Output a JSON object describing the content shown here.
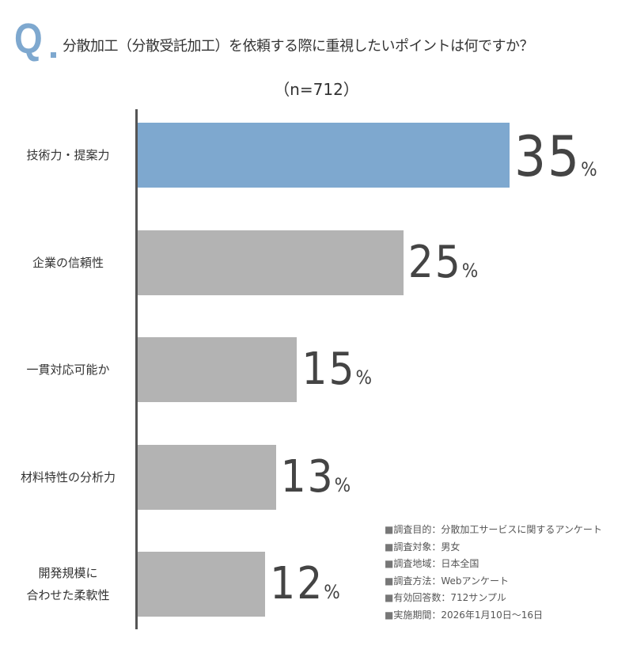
{
  "header": {
    "q_mark": "Q",
    "title": "分散加工（分散受託加工）を依頼する際に重視したいポイントは何ですか？",
    "sample": "（n=712）"
  },
  "chart_data": {
    "type": "bar",
    "orientation": "horizontal",
    "categories": [
      "技術力・提案力",
      "企業の信頼性",
      "一貫対応可能か",
      "材料特性の分析力",
      "開発規模に\n合わせた柔軟性"
    ],
    "values": [
      35,
      25,
      15,
      13,
      12
    ],
    "unit": "%",
    "colors": [
      "#7ea8cf",
      "#b3b3b3",
      "#b3b3b3",
      "#b3b3b3",
      "#b3b3b3"
    ],
    "grid": false
  },
  "notes": [
    "調査目的：分散加工サービスに関するアンケート",
    "調査対象：男女",
    "調査地域：日本全国",
    "調査方法：Webアンケート",
    "有効回答数：712サンプル",
    "実施期間：2026年1月10日～16日"
  ]
}
